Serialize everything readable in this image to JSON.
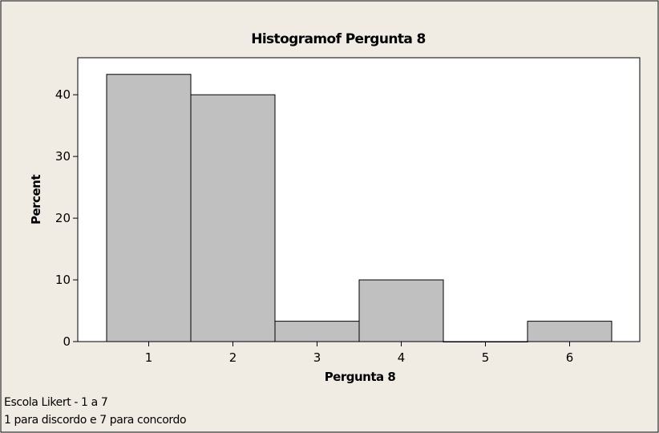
{
  "chart_data": {
    "type": "bar",
    "title": "Histogramof Pergunta 8",
    "xlabel": "Pergunta 8",
    "ylabel": "Percent",
    "categories": [
      "1",
      "2",
      "3",
      "4",
      "5",
      "6"
    ],
    "values": [
      43.3,
      40.0,
      3.3,
      10.0,
      0.0,
      3.3
    ],
    "yticks": [
      "0",
      "10",
      "20",
      "30",
      "40"
    ],
    "ylim": [
      0,
      46
    ],
    "grid": false,
    "colors": {
      "background": "#f0ece4",
      "plot_background": "#ffffff",
      "bar_fill": "#c0c0c0",
      "bar_stroke": "#000000"
    },
    "notes": [
      "Escola Likert - 1 a 7",
      "1 para discordo e 7 para concordo"
    ]
  }
}
